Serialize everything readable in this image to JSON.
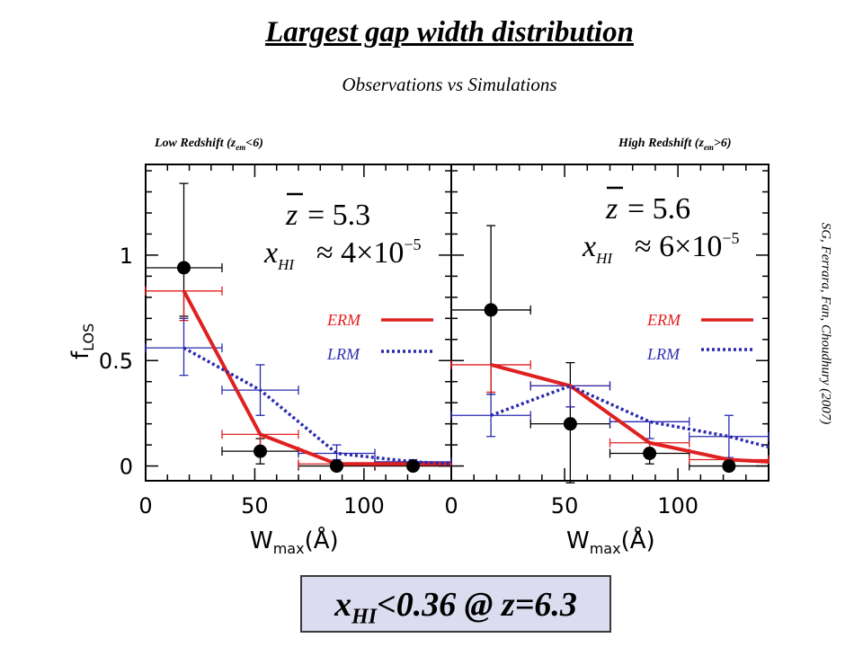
{
  "header": {
    "title": "Largest gap width distribution",
    "subtitle": "Observations vs Simulations"
  },
  "citation": "SG, Ferrara, Fan, Choudhury (2007)",
  "result_box": {
    "var": "x",
    "sub": "HI",
    "rest": "<0.36 @ z=6.3"
  },
  "colors": {
    "erm": "#e02020",
    "lrm": "#2a2ab0",
    "obs": "#000000",
    "box_bg": "#dcdcf0"
  },
  "chart_data": [
    {
      "type": "line",
      "title_main": "Low Redshift (z",
      "title_sub": "em",
      "title_tail": "<6)",
      "xlabel_main": "W",
      "xlabel_sub": "max",
      "xlabel_tail": "(Å)",
      "ylabel_main": "f",
      "ylabel_sub": "LOS",
      "xlim": [
        0,
        140
      ],
      "ylim": [
        -0.07,
        1.43
      ],
      "xticks": [
        0,
        50,
        100
      ],
      "yticks": [
        0,
        0.5,
        1
      ],
      "ytick_labels": [
        "0",
        "0.5",
        "1"
      ],
      "annotation": {
        "zbar": "z",
        "zval": "= 5.3",
        "xhi_var": "x",
        "xhi_sub": "HI",
        "xhi_val": "≈ 4×10",
        "xhi_exp": "−5"
      },
      "legend": {
        "erm": "ERM",
        "lrm": "LRM"
      },
      "series": [
        {
          "name": "ERM",
          "kind": "line",
          "x": [
            17.5,
            52.5,
            87.5,
            122.5,
            140
          ],
          "y": [
            0.83,
            0.15,
            0.01,
            0.01,
            0.01
          ]
        },
        {
          "name": "LRM",
          "kind": "line",
          "x": [
            17.5,
            52.5,
            87.5,
            122.5,
            140
          ],
          "y": [
            0.56,
            0.36,
            0.06,
            0.02,
            0.01
          ]
        },
        {
          "kind": "obs",
          "x": [
            17.5,
            52.5,
            87.5,
            122.5
          ],
          "y": [
            0.94,
            0.07,
            0.0,
            0.0
          ],
          "xerr": 17.5,
          "yerr_lo": [
            0.23,
            0.06,
            0.0,
            0.0
          ],
          "yerr_hi": [
            0.4,
            0.06,
            0.0,
            0.0
          ]
        },
        {
          "kind": "erm_err",
          "x": [
            17.5,
            52.5,
            87.5
          ],
          "y": [
            0.83,
            0.15,
            0.01
          ],
          "xerr": 17.5,
          "yerr_lo": [
            0.14,
            0.07,
            0.01
          ],
          "yerr_hi": [
            0.0,
            0.0,
            0.0
          ]
        },
        {
          "kind": "lrm_err",
          "x": [
            17.5,
            52.5,
            87.5,
            122.5
          ],
          "y": [
            0.56,
            0.36,
            0.06,
            0.02
          ],
          "xerr": 17.5,
          "yerr_lo": [
            0.13,
            0.12,
            0.03,
            0.01
          ],
          "yerr_hi": [
            0.14,
            0.12,
            0.04,
            0.01
          ]
        }
      ]
    },
    {
      "type": "line",
      "title_main": "High Redshift (z",
      "title_sub": "em",
      "title_tail": ">6)",
      "xlabel_main": "W",
      "xlabel_sub": "max",
      "xlabel_tail": "(Å)",
      "xlim": [
        0,
        140
      ],
      "ylim": [
        -0.07,
        1.43
      ],
      "xticks": [
        0,
        50,
        100
      ],
      "annotation": {
        "zbar": "z",
        "zval": "= 5.6",
        "xhi_var": "x",
        "xhi_sub": "HI",
        "xhi_val": "≈ 6×10",
        "xhi_exp": "−5"
      },
      "legend": {
        "erm": "ERM",
        "lrm": "LRM"
      },
      "series": [
        {
          "name": "ERM",
          "kind": "line",
          "x": [
            17.5,
            52.5,
            87.5,
            122.5,
            140
          ],
          "y": [
            0.48,
            0.38,
            0.11,
            0.03,
            0.02
          ]
        },
        {
          "name": "LRM",
          "kind": "line",
          "x": [
            17.5,
            52.5,
            87.5,
            122.5,
            140
          ],
          "y": [
            0.24,
            0.38,
            0.21,
            0.14,
            0.09
          ]
        },
        {
          "kind": "obs",
          "x": [
            17.5,
            52.5,
            87.5,
            122.5
          ],
          "y": [
            0.74,
            0.2,
            0.06,
            0.0
          ],
          "xerr": 17.5,
          "yerr_lo": [
            0.4,
            0.28,
            0.05,
            0.0
          ],
          "yerr_hi": [
            0.4,
            0.29,
            0.05,
            0.0
          ]
        },
        {
          "kind": "erm_err",
          "x": [
            17.5,
            52.5,
            87.5,
            122.5
          ],
          "y": [
            0.48,
            0.38,
            0.11,
            0.03
          ],
          "xerr": 17.5,
          "yerr_lo": [
            0.13,
            0.1,
            0.05,
            0.02
          ],
          "yerr_hi": [
            0.0,
            0.0,
            0.0,
            0.0
          ]
        },
        {
          "kind": "lrm_err",
          "x": [
            17.5,
            52.5,
            87.5,
            122.5
          ],
          "y": [
            0.24,
            0.38,
            0.21,
            0.14
          ],
          "xerr": 17.5,
          "yerr_lo": [
            0.1,
            0.1,
            0.08,
            0.1
          ],
          "yerr_hi": [
            0.1,
            0.0,
            0.0,
            0.1
          ]
        }
      ]
    }
  ]
}
